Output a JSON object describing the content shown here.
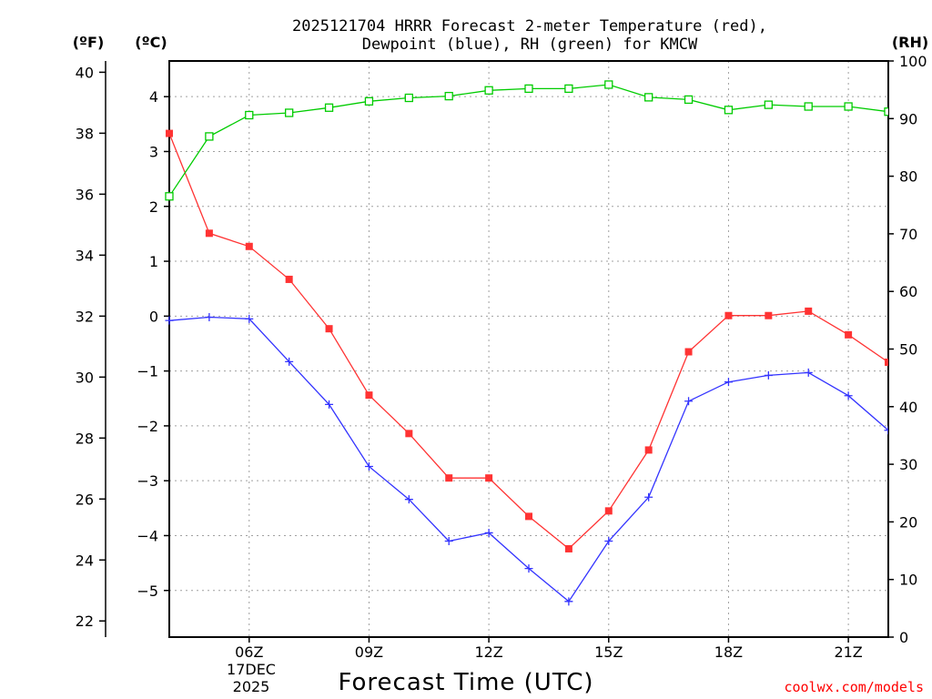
{
  "chart_data": {
    "type": "line",
    "title_line1": "2025121704 HRRR Forecast 2-meter Temperature (red),",
    "title_line2": "Dewpoint (blue), RH (green) for KMCW",
    "xlabel": "Forecast Time (UTC)",
    "credit": "coolwx.com/models",
    "unit_left_f": "(ºF)",
    "unit_left_c": "(ºC)",
    "unit_right": "(RH)",
    "date_line1": "17DEC",
    "date_line2": "2025",
    "x_hours": [
      4,
      5,
      6,
      7,
      8,
      9,
      10,
      11,
      12,
      13,
      14,
      15,
      16,
      17,
      18,
      19,
      20,
      21,
      22
    ],
    "x_range": [
      4,
      22
    ],
    "x_ticks": [
      {
        "hour": 6,
        "label": "06Z"
      },
      {
        "hour": 9,
        "label": "09Z"
      },
      {
        "hour": 12,
        "label": "12Z"
      },
      {
        "hour": 15,
        "label": "15Z"
      },
      {
        "hour": 18,
        "label": "18Z"
      },
      {
        "hour": 21,
        "label": "21Z"
      }
    ],
    "y_celsius_range": [
      -5.85,
      4.65
    ],
    "y_celsius_ticks": [
      "4",
      "3",
      "2",
      "1",
      "0",
      "−1",
      "−2",
      "−3",
      "−4",
      "−5"
    ],
    "y_celsius_tick_values": [
      4,
      3,
      2,
      1,
      0,
      -1,
      -2,
      -3,
      -4,
      -5
    ],
    "y_fahrenheit_ticks": [
      "40",
      "38",
      "36",
      "34",
      "32",
      "30",
      "28",
      "26",
      "24",
      "22"
    ],
    "y_fahrenheit_tick_values": [
      40,
      38,
      36,
      34,
      32,
      30,
      28,
      26,
      24,
      22
    ],
    "y_rh_range": [
      0,
      100
    ],
    "y_rh_ticks": [
      "100",
      "90",
      "80",
      "70",
      "60",
      "50",
      "40",
      "30",
      "20",
      "10",
      "0"
    ],
    "y_rh_tick_values": [
      100,
      90,
      80,
      70,
      60,
      50,
      40,
      30,
      20,
      10,
      0
    ],
    "series": [
      {
        "name": "Temperature",
        "unit": "C",
        "color": "#ff3333",
        "marker": "filled-square",
        "values": [
          3.33,
          1.51,
          1.27,
          0.67,
          -0.23,
          -1.44,
          -2.14,
          -2.95,
          -2.95,
          -3.65,
          -4.24,
          -3.55,
          -2.44,
          -0.65,
          0.01,
          0.01,
          0.09,
          -0.34,
          -0.84
        ]
      },
      {
        "name": "Dewpoint",
        "unit": "C",
        "color": "#3333ff",
        "marker": "plus",
        "values": [
          -0.08,
          -0.02,
          -0.05,
          -0.83,
          -1.61,
          -2.74,
          -3.34,
          -4.1,
          -3.95,
          -4.6,
          -5.2,
          -4.1,
          -3.3,
          -1.55,
          -1.2,
          -1.08,
          -1.03,
          -1.45,
          -2.08
        ]
      },
      {
        "name": "Relative Humidity",
        "unit": "%",
        "color": "#00cc00",
        "marker": "open-square",
        "values": [
          76.5,
          86.9,
          90.6,
          91.0,
          91.9,
          93.0,
          93.6,
          93.9,
          94.9,
          95.2,
          95.2,
          95.9,
          93.7,
          93.3,
          91.5,
          92.4,
          92.1,
          92.1,
          91.2
        ]
      }
    ]
  }
}
